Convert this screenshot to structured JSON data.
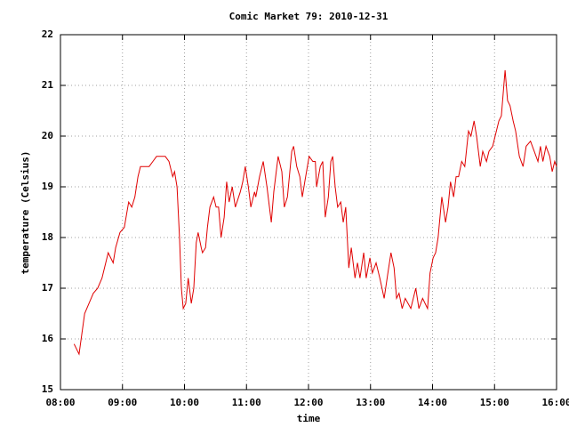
{
  "chart_data": {
    "type": "line",
    "title": "Comic Market 79: 2010-12-31",
    "x_label": "time",
    "y_label": "temperature (Celsius)",
    "xlim": [
      8,
      16
    ],
    "ylim": [
      15,
      22
    ],
    "xticks": [
      {
        "value": 8,
        "label": "08:00"
      },
      {
        "value": 9,
        "label": "09:00"
      },
      {
        "value": 10,
        "label": "10:00"
      },
      {
        "value": 11,
        "label": "11:00"
      },
      {
        "value": 12,
        "label": "12:00"
      },
      {
        "value": 13,
        "label": "13:00"
      },
      {
        "value": 14,
        "label": "14:00"
      },
      {
        "value": 15,
        "label": "15:00"
      },
      {
        "value": 16,
        "label": "16:00"
      }
    ],
    "yticks": [
      15,
      16,
      17,
      18,
      19,
      20,
      21,
      22
    ],
    "grid": true,
    "x": [
      8.22,
      8.3,
      8.39,
      8.46,
      8.53,
      8.6,
      8.67,
      8.77,
      8.85,
      8.89,
      8.96,
      9.03,
      9.1,
      9.15,
      9.2,
      9.25,
      9.29,
      9.43,
      9.49,
      9.55,
      9.69,
      9.75,
      9.81,
      9.84,
      9.88,
      9.92,
      9.95,
      9.98,
      10.02,
      10.06,
      10.11,
      10.15,
      10.19,
      10.22,
      10.27,
      10.29,
      10.34,
      10.37,
      10.41,
      10.47,
      10.51,
      10.55,
      10.59,
      10.64,
      10.68,
      10.72,
      10.77,
      10.82,
      10.9,
      10.94,
      10.98,
      11.03,
      11.07,
      11.13,
      11.15,
      11.21,
      11.27,
      11.33,
      11.4,
      11.44,
      11.51,
      11.57,
      11.61,
      11.66,
      11.73,
      11.76,
      11.81,
      11.86,
      11.9,
      11.94,
      12.01,
      12.07,
      12.11,
      12.13,
      12.19,
      12.23,
      12.27,
      12.32,
      12.36,
      12.39,
      12.43,
      12.47,
      12.52,
      12.56,
      12.6,
      12.65,
      12.69,
      12.75,
      12.79,
      12.83,
      12.89,
      12.93,
      12.99,
      13.03,
      13.09,
      13.15,
      13.22,
      13.28,
      13.33,
      13.38,
      13.42,
      13.46,
      13.51,
      13.56,
      13.65,
      13.73,
      13.78,
      13.84,
      13.92,
      13.96,
      14.01,
      14.05,
      14.09,
      14.15,
      14.21,
      14.25,
      14.29,
      14.34,
      14.38,
      14.42,
      14.47,
      14.52,
      14.58,
      14.62,
      14.67,
      14.71,
      14.77,
      14.81,
      14.87,
      14.91,
      14.97,
      15.03,
      15.07,
      15.11,
      15.17,
      15.21,
      15.25,
      15.3,
      15.34,
      15.4,
      15.46,
      15.51,
      15.58,
      15.64,
      15.7,
      15.74,
      15.78,
      15.83,
      15.89,
      15.93,
      15.97,
      16.0
    ],
    "series": [
      {
        "color": "#e00000",
        "values": [
          15.9,
          15.7,
          16.5,
          16.7,
          16.9,
          17.0,
          17.2,
          17.7,
          17.5,
          17.8,
          18.1,
          18.2,
          18.7,
          18.6,
          18.8,
          19.2,
          19.4,
          19.4,
          19.5,
          19.6,
          19.6,
          19.5,
          19.2,
          19.3,
          19.0,
          18.0,
          17.0,
          16.6,
          16.7,
          17.2,
          16.7,
          17.0,
          17.9,
          18.1,
          17.8,
          17.7,
          17.8,
          18.2,
          18.6,
          18.8,
          18.6,
          18.6,
          18.0,
          18.4,
          19.1,
          18.7,
          19.0,
          18.6,
          18.9,
          19.1,
          19.4,
          19.0,
          18.6,
          18.9,
          18.8,
          19.2,
          19.5,
          19.0,
          18.3,
          18.9,
          19.6,
          19.3,
          18.6,
          18.8,
          19.7,
          19.8,
          19.4,
          19.2,
          18.8,
          19.1,
          19.6,
          19.5,
          19.5,
          19.0,
          19.4,
          19.5,
          18.4,
          18.8,
          19.5,
          19.6,
          19.0,
          18.6,
          18.7,
          18.3,
          18.6,
          17.4,
          17.8,
          17.2,
          17.5,
          17.2,
          17.7,
          17.2,
          17.6,
          17.3,
          17.5,
          17.2,
          16.8,
          17.3,
          17.7,
          17.4,
          16.8,
          16.9,
          16.6,
          16.8,
          16.6,
          17.0,
          16.6,
          16.8,
          16.6,
          17.3,
          17.6,
          17.7,
          18.0,
          18.8,
          18.3,
          18.6,
          19.1,
          18.8,
          19.2,
          19.2,
          19.5,
          19.4,
          20.1,
          20.0,
          20.3,
          20.0,
          19.4,
          19.7,
          19.5,
          19.7,
          19.8,
          20.1,
          20.3,
          20.4,
          21.3,
          20.7,
          20.6,
          20.3,
          20.1,
          19.6,
          19.4,
          19.8,
          19.9,
          19.7,
          19.5,
          19.8,
          19.5,
          19.8,
          19.6,
          19.3,
          19.5,
          19.4
        ]
      }
    ]
  }
}
